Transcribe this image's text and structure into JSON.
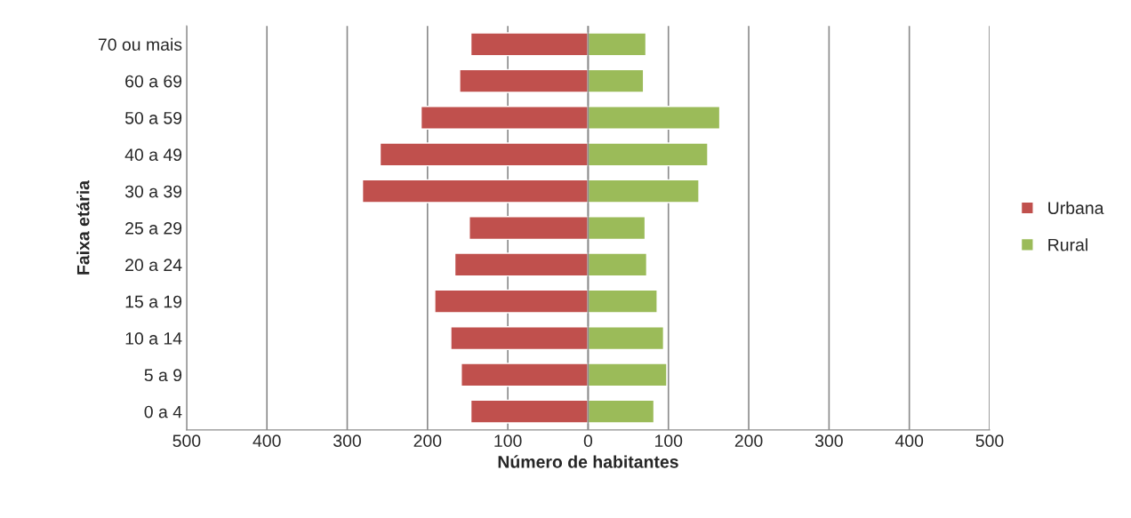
{
  "chart_data": {
    "type": "bar",
    "orientation": "horizontal",
    "xlabel": "Número de habitantes",
    "ylabel": "Faixa etária",
    "categories": [
      "70 ou mais",
      "60 a 69",
      "50 a 59",
      "40 a 49",
      "30 a 39",
      "25 a 29",
      "20 a 24",
      "15 a 19",
      "10 a 14",
      "5 a 9",
      "0 a 4"
    ],
    "series": [
      {
        "name": "Urbana",
        "color": "#c0504d",
        "values": [
          -146,
          -160,
          -208,
          -259,
          -281,
          -148,
          -166,
          -191,
          -171,
          -158,
          -146
        ]
      },
      {
        "name": "Rural",
        "color": "#9bbb59",
        "values": [
          72,
          69,
          164,
          149,
          138,
          71,
          73,
          86,
          94,
          98,
          82
        ]
      }
    ],
    "xlim": [
      -500,
      500
    ],
    "xticks": [
      {
        "value": -500,
        "label": "500"
      },
      {
        "value": -400,
        "label": "400"
      },
      {
        "value": -300,
        "label": "300"
      },
      {
        "value": -200,
        "label": "200"
      },
      {
        "value": -100,
        "label": "100"
      },
      0,
      100,
      200,
      300,
      400,
      500
    ],
    "grid": "x",
    "legend": "right",
    "stacked": true
  }
}
